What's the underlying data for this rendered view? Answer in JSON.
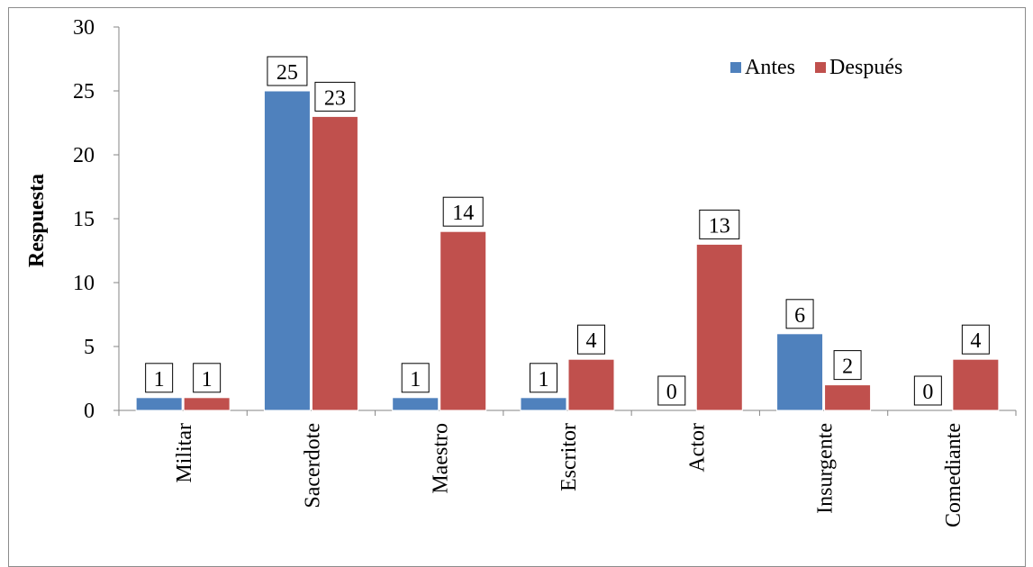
{
  "chart_data": {
    "type": "bar",
    "title": "",
    "xlabel": "",
    "ylabel": "Respuesta",
    "ylim": [
      0,
      30
    ],
    "yticks": [
      0,
      5,
      10,
      15,
      20,
      25,
      30
    ],
    "categories": [
      "Militar",
      "Sacerdote",
      "Maestro",
      "Escritor",
      "Actor",
      "Insurgente",
      "Comediante"
    ],
    "series": [
      {
        "name": "Antes",
        "color": "#4f81bd",
        "values": [
          1,
          25,
          1,
          1,
          0,
          6,
          0
        ]
      },
      {
        "name": "Después",
        "color": "#c0504d",
        "values": [
          1,
          23,
          14,
          4,
          13,
          2,
          4
        ]
      }
    ],
    "grid": false,
    "legend": "top-right",
    "data_labels": true
  }
}
